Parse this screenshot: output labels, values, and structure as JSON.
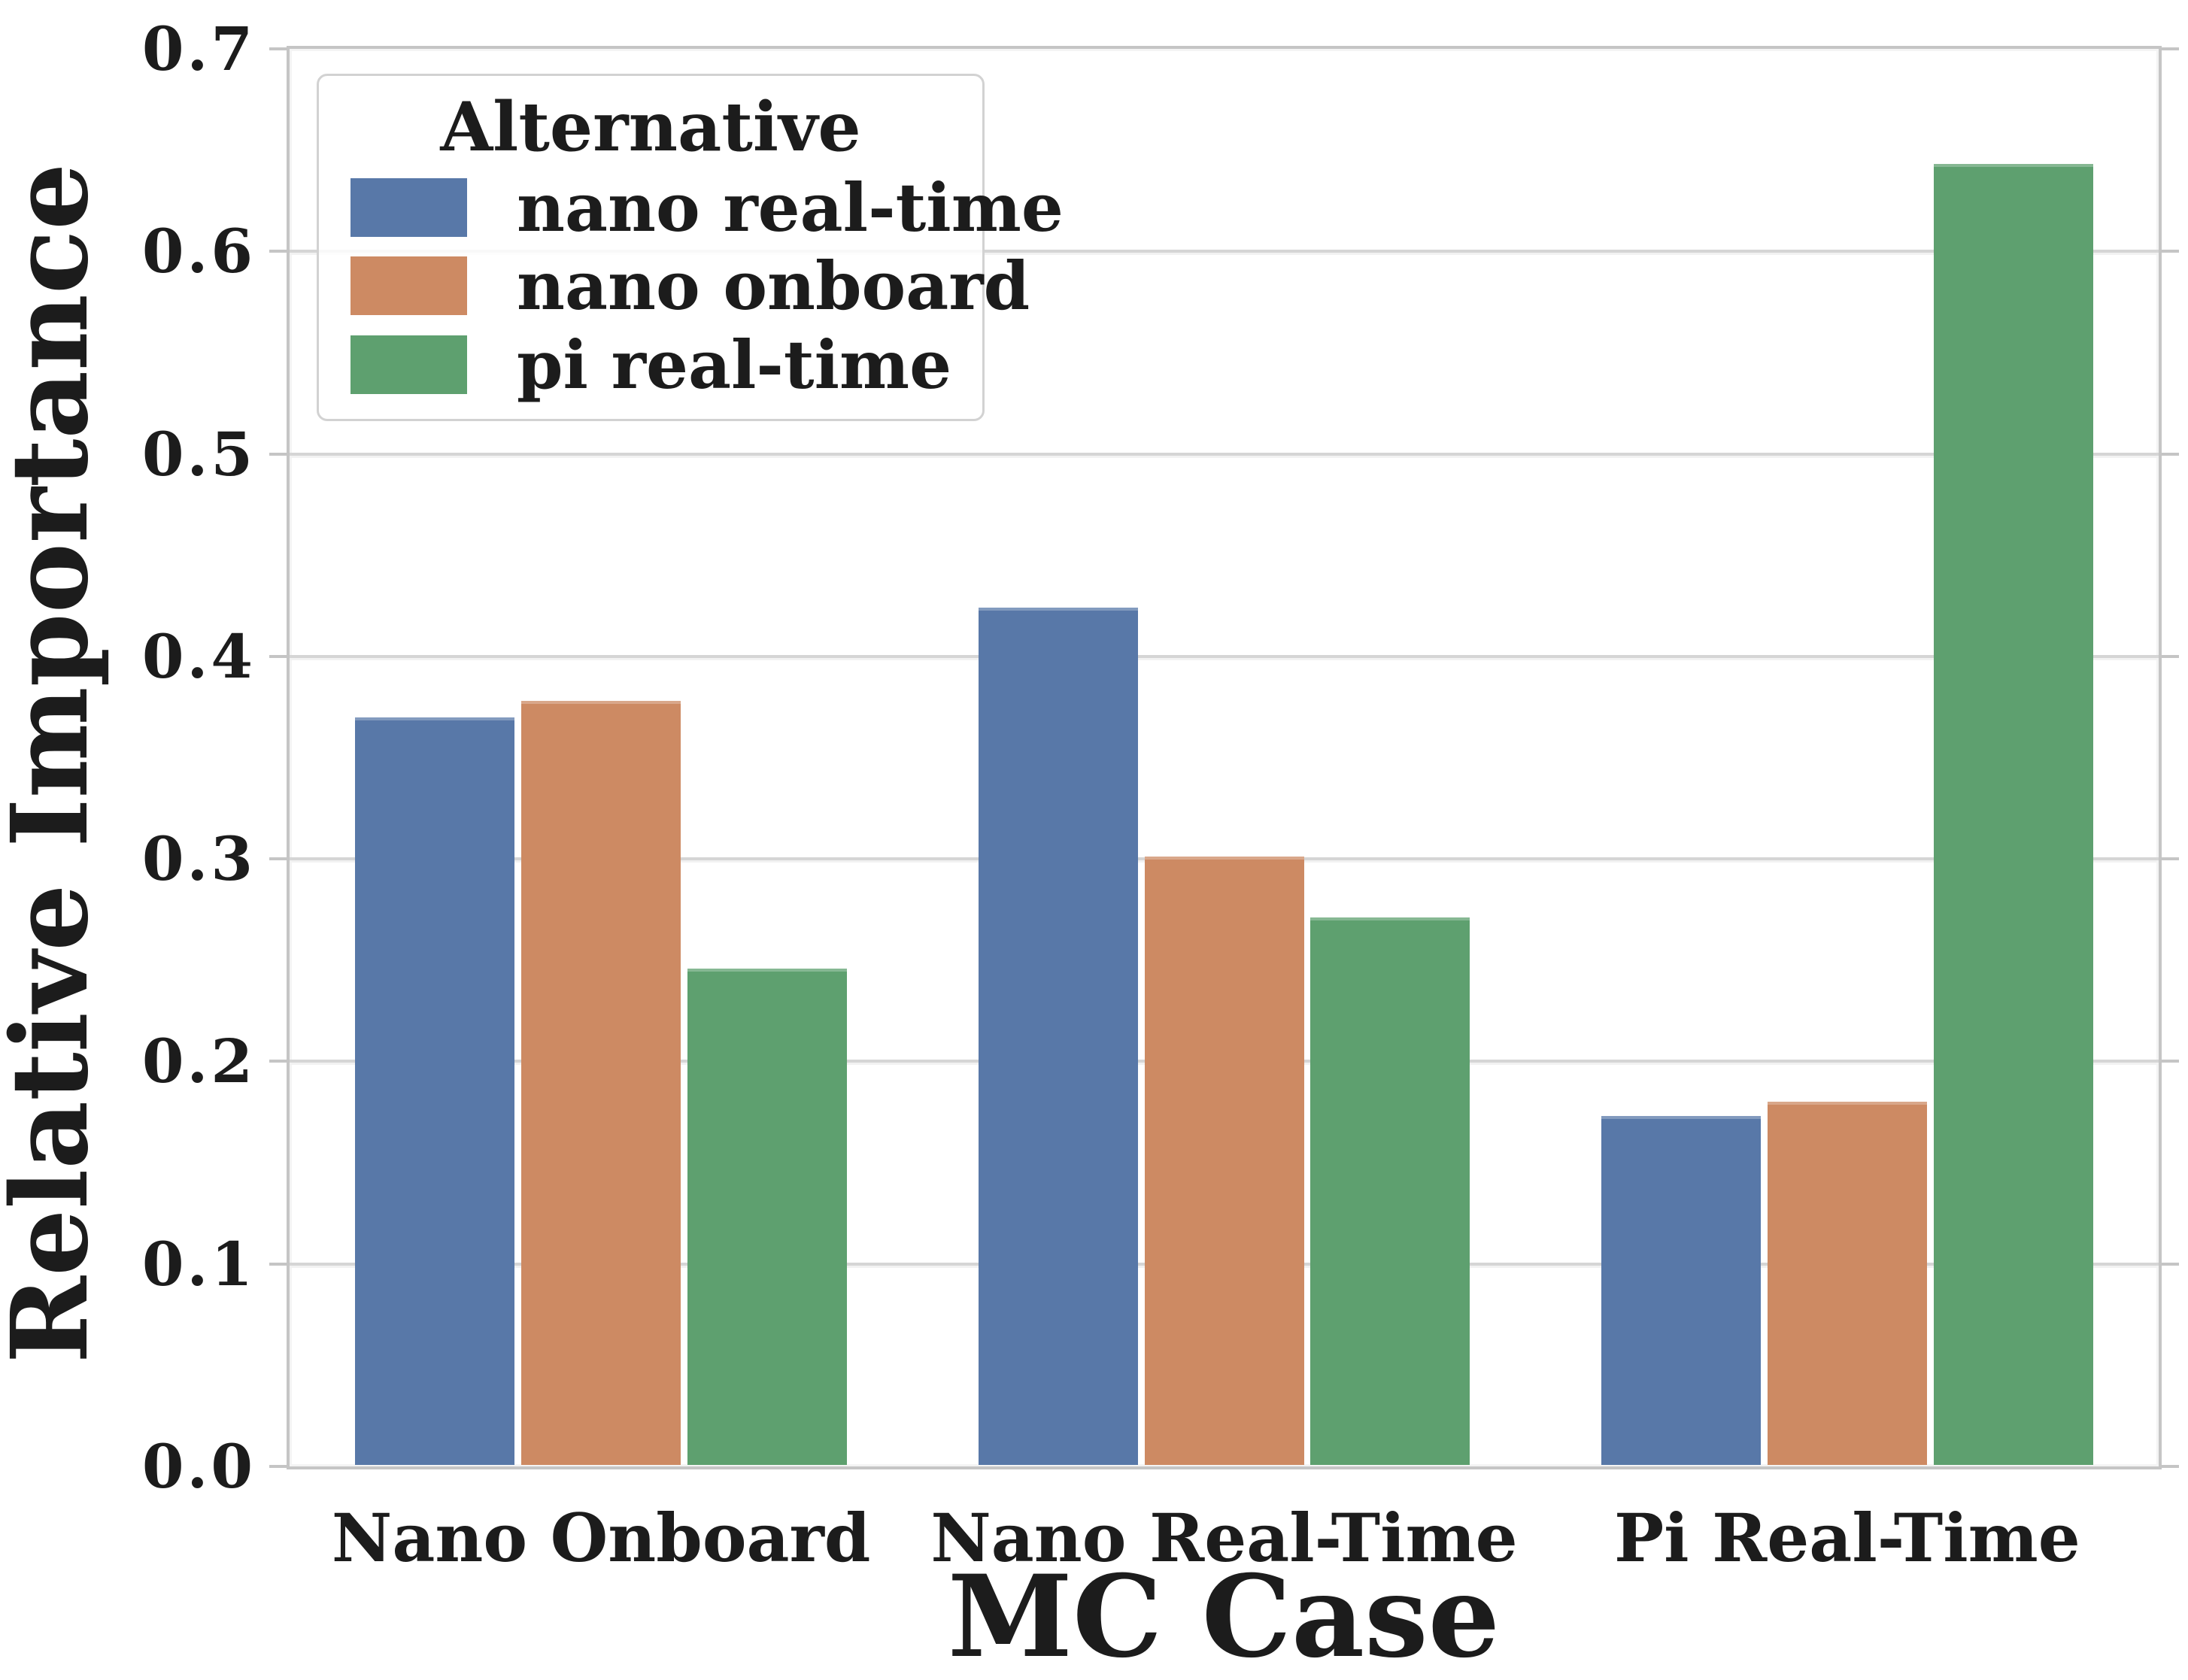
{
  "figure": {
    "background": "#ffffff",
    "spine_color": "#c5c5c5",
    "grid_color": "#d5d5d5",
    "text_color": "#1c1c1c"
  },
  "chart_data": {
    "type": "bar",
    "title": "",
    "xlabel": "MC Case",
    "ylabel": "Relative Importance",
    "categories": [
      "Nano Onboard",
      "Nano Real-Time",
      "Pi Real-Time"
    ],
    "series": [
      {
        "name": "nano real-time",
        "color": "#5878A8",
        "values": [
          0.37,
          0.424,
          0.173
        ]
      },
      {
        "name": "nano onboard",
        "color": "#CD8A63",
        "values": [
          0.378,
          0.301,
          0.18
        ]
      },
      {
        "name": "pi real-time",
        "color": "#5EA06F",
        "values": [
          0.246,
          0.271,
          0.643
        ]
      }
    ],
    "legend": {
      "title": "Alternative",
      "position": "upper-left"
    },
    "ylim": [
      0,
      0.7
    ],
    "ytick_step": 0.1,
    "ytick_labels": [
      "0.0",
      "0.1",
      "0.2",
      "0.3",
      "0.4",
      "0.5",
      "0.6",
      "0.7"
    ],
    "grid": true,
    "legend_entries": [
      "nano real-time",
      "nano onboard",
      "pi real-time"
    ]
  }
}
